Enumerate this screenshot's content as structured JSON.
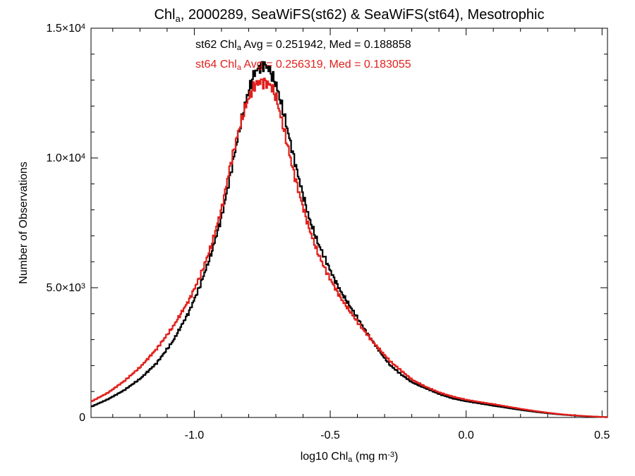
{
  "chart_data": {
    "type": "line",
    "title": {
      "base": "Chl",
      "sub": "a",
      "rest": ", 2000289, SeaWiFS(st62) & SeaWiFS(st64), Mesotrophic"
    },
    "xlabel": {
      "base": "log10 Chl",
      "sub": "a",
      "units_open": " (mg m",
      "units_sup": "-3",
      "units_close": ")"
    },
    "ylabel": "Number of Observations",
    "xlim": [
      -1.38,
      0.52
    ],
    "ylim": [
      0,
      15000
    ],
    "x_ticks": [
      {
        "value": -1.0,
        "label": "-1.0"
      },
      {
        "value": -0.5,
        "label": "-0.5"
      },
      {
        "value": 0.0,
        "label": "0.0"
      },
      {
        "value": 0.5,
        "label": "0.5"
      }
    ],
    "y_ticks": [
      {
        "value": 0,
        "label": "0"
      },
      {
        "value": 5000,
        "label_mantissa": "5.0",
        "label_exp": "3"
      },
      {
        "value": 10000,
        "label_mantissa": "1.0",
        "label_exp": "4"
      },
      {
        "value": 15000,
        "label_mantissa": "1.5",
        "label_exp": "4"
      }
    ],
    "annotations": [
      {
        "color": "#000000",
        "pre": "st62 Chl",
        "sub": "a",
        "post": " Avg = 0.251942, Med = 0.188858"
      },
      {
        "color": "#e0201c",
        "pre": "st64 Chl",
        "sub": "a",
        "post": " Avg = 0.256319, Med = 0.183055"
      }
    ],
    "series": [
      {
        "color": "#000000",
        "x": [
          -1.38,
          -1.32,
          -1.26,
          -1.2,
          -1.14,
          -1.08,
          -1.02,
          -0.98,
          -0.94,
          -0.9,
          -0.87,
          -0.84,
          -0.81,
          -0.78,
          -0.75,
          -0.73,
          -0.7,
          -0.67,
          -0.64,
          -0.61,
          -0.58,
          -0.55,
          -0.52,
          -0.49,
          -0.46,
          -0.43,
          -0.4,
          -0.37,
          -0.34,
          -0.31,
          -0.28,
          -0.24,
          -0.2,
          -0.15,
          -0.1,
          -0.05,
          0.0,
          0.05,
          0.1,
          0.15,
          0.2,
          0.25,
          0.3,
          0.35,
          0.4,
          0.45,
          0.5,
          0.52
        ],
        "y": [
          420,
          700,
          1050,
          1500,
          2100,
          2950,
          4100,
          5100,
          6300,
          7800,
          9300,
          10900,
          12300,
          13300,
          13600,
          13500,
          12800,
          11600,
          10200,
          8900,
          7700,
          6800,
          6100,
          5400,
          4800,
          4300,
          3800,
          3300,
          2850,
          2400,
          2000,
          1650,
          1350,
          1120,
          900,
          730,
          620,
          540,
          450,
          370,
          290,
          220,
          160,
          110,
          70,
          40,
          20,
          10
        ]
      },
      {
        "color": "#e0201c",
        "x": [
          -1.38,
          -1.32,
          -1.26,
          -1.2,
          -1.14,
          -1.08,
          -1.02,
          -0.98,
          -0.94,
          -0.9,
          -0.87,
          -0.84,
          -0.81,
          -0.78,
          -0.76,
          -0.74,
          -0.72,
          -0.7,
          -0.67,
          -0.64,
          -0.61,
          -0.58,
          -0.55,
          -0.52,
          -0.49,
          -0.46,
          -0.43,
          -0.4,
          -0.37,
          -0.34,
          -0.31,
          -0.28,
          -0.24,
          -0.2,
          -0.15,
          -0.1,
          -0.05,
          0.0,
          0.05,
          0.1,
          0.15,
          0.2,
          0.25,
          0.3,
          0.35,
          0.4,
          0.45,
          0.5,
          0.52
        ],
        "y": [
          620,
          950,
          1400,
          1950,
          2650,
          3500,
          4550,
          5450,
          6600,
          8100,
          9700,
          11000,
          12100,
          12800,
          12950,
          12900,
          12800,
          12300,
          11000,
          9600,
          8400,
          7300,
          6400,
          5700,
          5100,
          4550,
          4100,
          3650,
          3250,
          2850,
          2500,
          2150,
          1800,
          1450,
          1180,
          960,
          800,
          680,
          590,
          510,
          420,
          330,
          250,
          180,
          120,
          80,
          45,
          20,
          10
        ]
      }
    ]
  }
}
